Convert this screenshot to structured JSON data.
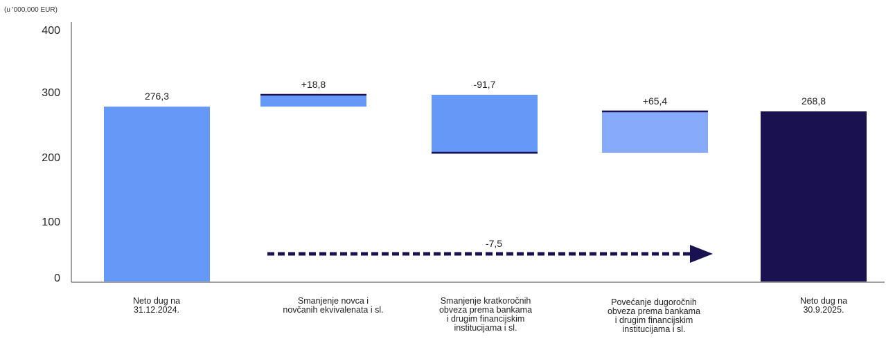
{
  "chart_data": {
    "type": "waterfall",
    "unit_label": "(u '000,000 EUR)",
    "y_ticks": [
      "0",
      "100",
      "200",
      "300",
      "400"
    ],
    "ylim": [
      0,
      400
    ],
    "categories": [
      "Neto dug na\n31.12.2024.",
      "Smanjenje novca i\nnovčanih ekvivalenata i sl.",
      "Smanjenje  kratkoročnih\nobveza prema bankama\ni drugim financijskim\ninstitucijama i sl.",
      "Povećanje dugoročnih\nobveza prema bankama\ni drugim financijskim\ninstitucijama i sl.",
      "Neto dug na\n30.9.2025."
    ],
    "bars": [
      {
        "label": "276,3",
        "base": 0,
        "top": 276.3,
        "color": "#6699f7",
        "marker": "none"
      },
      {
        "label": "+18,8",
        "base": 276.3,
        "top": 295.1,
        "color": "#6699f7",
        "marker": "top"
      },
      {
        "label": "-91,7",
        "base": 203.4,
        "top": 295.1,
        "color": "#6699f7",
        "marker": "bottom"
      },
      {
        "label": "+65,4",
        "base": 203.4,
        "top": 268.8,
        "color": "#87aafa",
        "marker": "top"
      },
      {
        "label": "268,8",
        "base": 0,
        "top": 268.8,
        "color": "#1a1150",
        "marker": "none"
      }
    ],
    "change_arrow": {
      "label": "-7,5",
      "color": "#1a1150"
    },
    "colors": {
      "marker": "#1a1150",
      "axis": "#444444"
    }
  }
}
